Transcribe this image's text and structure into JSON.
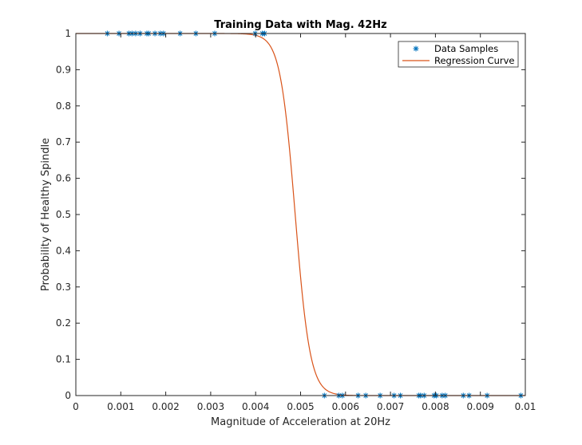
{
  "chart_data": {
    "type": "scatter",
    "title": "Training Data with Mag. 42Hz",
    "xlabel": "Magnitude of Acceleration at 20Hz",
    "ylabel": "Probability of Healthy Spindle",
    "xlim": [
      0,
      0.01
    ],
    "ylim": [
      0,
      1
    ],
    "x_ticks": [
      "0",
      "0.001",
      "0.002",
      "0.003",
      "0.004",
      "0.005",
      "0.006",
      "0.007",
      "0.008",
      "0.009",
      "0.01"
    ],
    "y_ticks": [
      "0",
      "0.1",
      "0.2",
      "0.3",
      "0.4",
      "0.5",
      "0.6",
      "0.7",
      "0.8",
      "0.9",
      "1"
    ],
    "grid": false,
    "legend_position": "top-right",
    "series": [
      {
        "name": "Data Samples",
        "marker": "asterisk",
        "color": "#0072BD",
        "points": [
          [
            0.0007,
            1
          ],
          [
            0.00096,
            1
          ],
          [
            0.00118,
            1
          ],
          [
            0.00125,
            1
          ],
          [
            0.00133,
            1
          ],
          [
            0.00143,
            1
          ],
          [
            0.00158,
            1
          ],
          [
            0.00162,
            1
          ],
          [
            0.00176,
            1
          ],
          [
            0.00188,
            1
          ],
          [
            0.00195,
            1
          ],
          [
            0.00232,
            1
          ],
          [
            0.00267,
            1
          ],
          [
            0.00309,
            1
          ],
          [
            0.00399,
            1
          ],
          [
            0.00415,
            1
          ],
          [
            0.0042,
            1
          ],
          [
            0.00553,
            0
          ],
          [
            0.00585,
            0
          ],
          [
            0.00593,
            0
          ],
          [
            0.00628,
            0
          ],
          [
            0.00645,
            0
          ],
          [
            0.00677,
            0
          ],
          [
            0.00708,
            0
          ],
          [
            0.00722,
            0
          ],
          [
            0.00763,
            0
          ],
          [
            0.00767,
            0
          ],
          [
            0.00775,
            0
          ],
          [
            0.00797,
            0
          ],
          [
            0.00802,
            0
          ],
          [
            0.00815,
            0
          ],
          [
            0.00822,
            0
          ],
          [
            0.00862,
            0
          ],
          [
            0.00875,
            0
          ],
          [
            0.00915,
            0
          ],
          [
            0.0099,
            0
          ]
        ]
      },
      {
        "name": "Regression Curve",
        "type": "line",
        "color": "#D95319",
        "x_range": [
          0,
          0.01
        ],
        "curve": {
          "kind": "logistic",
          "midpoint": 0.00488,
          "steepness": 6000,
          "direction": "decreasing"
        }
      }
    ]
  }
}
